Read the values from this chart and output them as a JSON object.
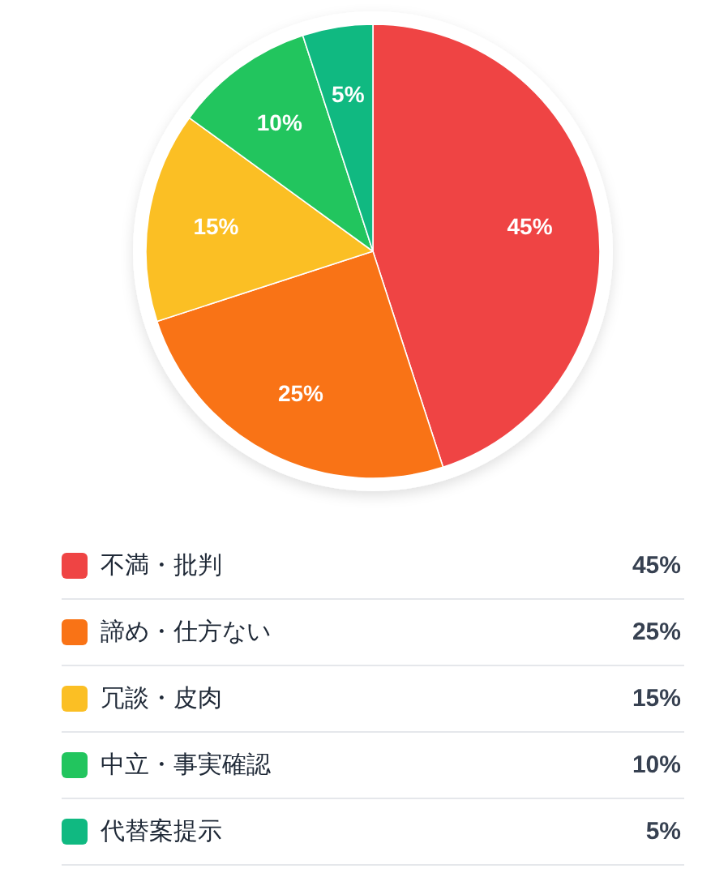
{
  "chart_data": {
    "type": "pie",
    "categories": [
      "不満・批判",
      "諦め・仕方ない",
      "冗談・皮肉",
      "中立・事実確認",
      "代替案提示"
    ],
    "values": [
      45,
      25,
      15,
      10,
      5
    ],
    "value_labels": [
      "45%",
      "25%",
      "15%",
      "10%",
      "5%"
    ],
    "colors": [
      "#ef4444",
      "#f97316",
      "#fbbf24",
      "#22c55e",
      "#10b981"
    ],
    "legend": "bottom"
  }
}
